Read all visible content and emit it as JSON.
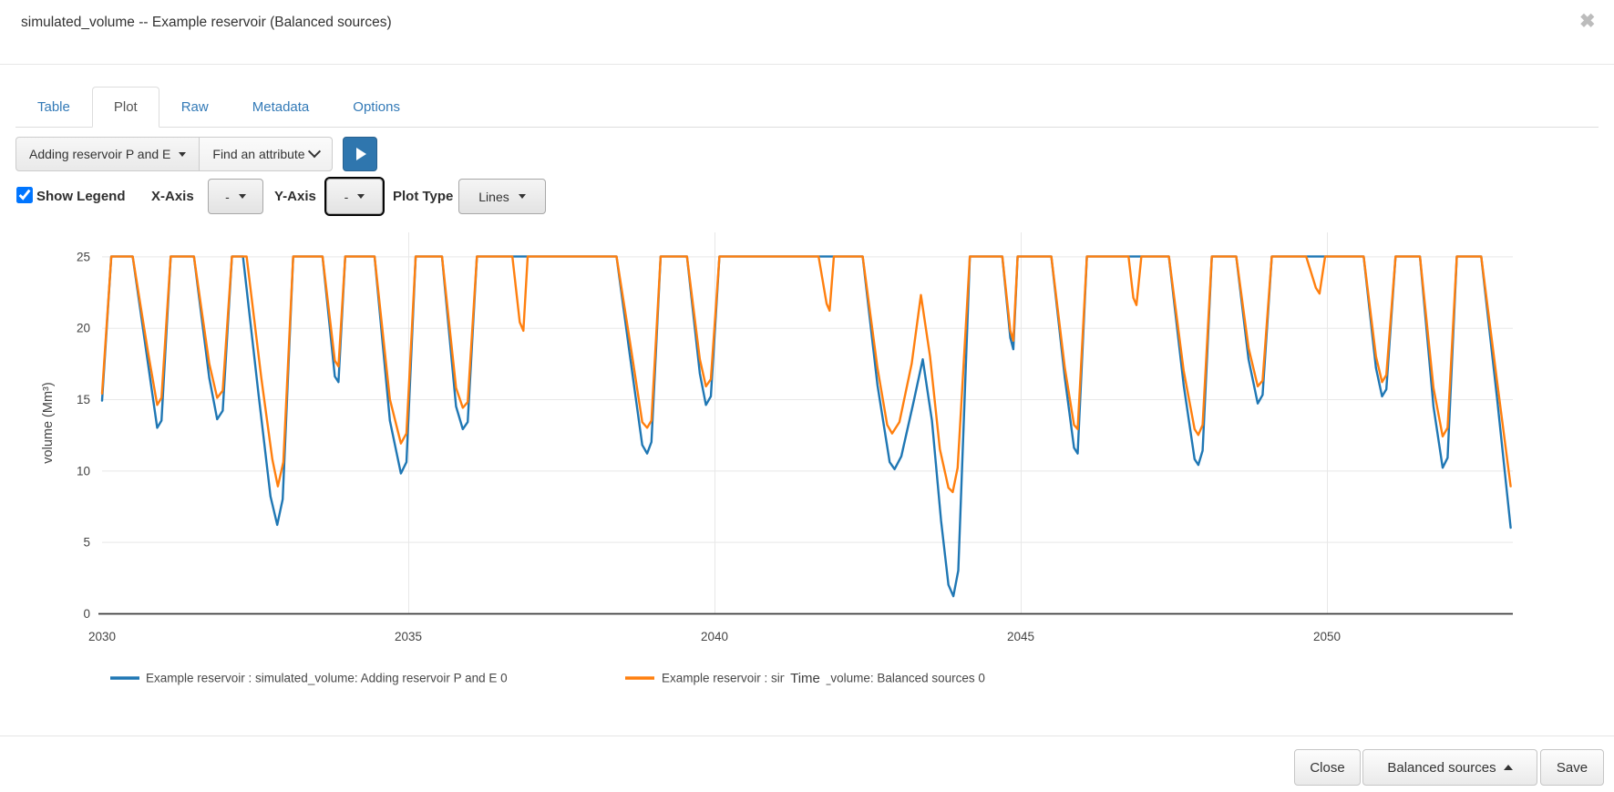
{
  "header": {
    "title": "simulated_volume -- Example reservoir (Balanced sources)",
    "close_glyph": "✖"
  },
  "tabs": [
    {
      "label": "Table",
      "active": false
    },
    {
      "label": "Plot",
      "active": true
    },
    {
      "label": "Raw",
      "active": false
    },
    {
      "label": "Metadata",
      "active": false
    },
    {
      "label": "Options",
      "active": false
    }
  ],
  "toolbar": {
    "scenario_dropdown_label": "Adding reservoir P and E",
    "attribute_dropdown_label": "Find an attribute",
    "play_button": "play"
  },
  "controls": {
    "show_legend_label": "Show Legend",
    "show_legend_checked": true,
    "x_axis_label": "X-Axis",
    "x_axis_value": "-",
    "y_axis_label": "Y-Axis",
    "y_axis_value": "-",
    "plot_type_label": "Plot Type",
    "plot_type_value": "Lines"
  },
  "chart_data": {
    "type": "line",
    "xlabel": "Time",
    "ylabel": "volume (Mm³)",
    "xlim": [
      2030,
      2053.2
    ],
    "ylim": [
      0,
      25
    ],
    "xticks": [
      2030,
      2035,
      2040,
      2045,
      2050
    ],
    "yticks": [
      0,
      5,
      10,
      15,
      20,
      25
    ],
    "grid": true,
    "legend_position": "below",
    "series": [
      {
        "name": "Example reservoir : simulated_volume: Adding reservoir P and E 0",
        "color": "#1f77b4",
        "points": [
          [
            2030.0,
            14.9
          ],
          [
            2030.15,
            25
          ],
          [
            2030.5,
            25
          ],
          [
            2030.75,
            17.5
          ],
          [
            2030.9,
            13.0
          ],
          [
            2030.97,
            13.5
          ],
          [
            2031.12,
            25
          ],
          [
            2031.5,
            25
          ],
          [
            2031.75,
            16.5
          ],
          [
            2031.88,
            13.6
          ],
          [
            2031.97,
            14.2
          ],
          [
            2032.12,
            25
          ],
          [
            2032.3,
            25
          ],
          [
            2032.55,
            15.5
          ],
          [
            2032.75,
            8.2
          ],
          [
            2032.86,
            6.2
          ],
          [
            2032.95,
            8.0
          ],
          [
            2033.12,
            25
          ],
          [
            2033.6,
            25
          ],
          [
            2033.8,
            16.6
          ],
          [
            2033.86,
            16.2
          ],
          [
            2033.97,
            25
          ],
          [
            2034.45,
            25
          ],
          [
            2034.7,
            13.5
          ],
          [
            2034.88,
            9.8
          ],
          [
            2034.97,
            10.6
          ],
          [
            2035.12,
            25
          ],
          [
            2035.55,
            25
          ],
          [
            2035.78,
            14.5
          ],
          [
            2035.89,
            12.9
          ],
          [
            2035.97,
            13.4
          ],
          [
            2036.12,
            25
          ],
          [
            2038.4,
            25
          ],
          [
            2038.62,
            18.0
          ],
          [
            2038.82,
            11.8
          ],
          [
            2038.9,
            11.2
          ],
          [
            2038.97,
            12.0
          ],
          [
            2039.12,
            25
          ],
          [
            2039.55,
            25
          ],
          [
            2039.76,
            16.8
          ],
          [
            2039.86,
            14.6
          ],
          [
            2039.94,
            15.2
          ],
          [
            2040.08,
            25
          ],
          [
            2042.42,
            25
          ],
          [
            2042.66,
            16.0
          ],
          [
            2042.86,
            10.6
          ],
          [
            2042.94,
            10.1
          ],
          [
            2043.05,
            11.0
          ],
          [
            2043.25,
            14.8
          ],
          [
            2043.4,
            17.8
          ],
          [
            2043.55,
            13.5
          ],
          [
            2043.7,
            6.5
          ],
          [
            2043.82,
            2.0
          ],
          [
            2043.9,
            1.2
          ],
          [
            2043.98,
            3.0
          ],
          [
            2044.17,
            25
          ],
          [
            2044.7,
            25
          ],
          [
            2044.83,
            19.3
          ],
          [
            2044.88,
            18.5
          ],
          [
            2044.95,
            25
          ],
          [
            2045.5,
            25
          ],
          [
            2045.72,
            16.5
          ],
          [
            2045.87,
            11.6
          ],
          [
            2045.93,
            11.2
          ],
          [
            2046.08,
            25
          ],
          [
            2047.42,
            25
          ],
          [
            2047.66,
            16.0
          ],
          [
            2047.84,
            10.8
          ],
          [
            2047.9,
            10.4
          ],
          [
            2047.97,
            11.4
          ],
          [
            2048.12,
            25
          ],
          [
            2048.52,
            25
          ],
          [
            2048.72,
            17.8
          ],
          [
            2048.87,
            14.7
          ],
          [
            2048.95,
            15.3
          ],
          [
            2049.1,
            25
          ],
          [
            2050.6,
            25
          ],
          [
            2050.8,
            17.2
          ],
          [
            2050.9,
            15.2
          ],
          [
            2050.97,
            15.7
          ],
          [
            2051.12,
            25
          ],
          [
            2051.52,
            25
          ],
          [
            2051.74,
            14.5
          ],
          [
            2051.89,
            10.2
          ],
          [
            2051.97,
            10.9
          ],
          [
            2052.12,
            25
          ],
          [
            2052.52,
            25
          ],
          [
            2052.78,
            15.0
          ],
          [
            2053.0,
            6.0
          ]
        ]
      },
      {
        "name": "Example reservoir : simulated_volume: Balanced sources 0",
        "color": "#ff7f0e",
        "points": [
          [
            2030.0,
            15.4
          ],
          [
            2030.15,
            25
          ],
          [
            2030.5,
            25
          ],
          [
            2030.75,
            18.3
          ],
          [
            2030.9,
            14.6
          ],
          [
            2030.97,
            15.1
          ],
          [
            2031.12,
            25
          ],
          [
            2031.5,
            25
          ],
          [
            2031.75,
            17.5
          ],
          [
            2031.88,
            15.1
          ],
          [
            2031.97,
            15.6
          ],
          [
            2032.12,
            25
          ],
          [
            2032.36,
            25
          ],
          [
            2032.6,
            16.5
          ],
          [
            2032.78,
            10.8
          ],
          [
            2032.87,
            8.9
          ],
          [
            2032.96,
            10.6
          ],
          [
            2033.12,
            25
          ],
          [
            2033.6,
            25
          ],
          [
            2033.8,
            17.7
          ],
          [
            2033.86,
            17.3
          ],
          [
            2033.97,
            25
          ],
          [
            2034.45,
            25
          ],
          [
            2034.7,
            15.0
          ],
          [
            2034.88,
            11.9
          ],
          [
            2034.97,
            12.6
          ],
          [
            2035.12,
            25
          ],
          [
            2035.55,
            25
          ],
          [
            2035.78,
            15.8
          ],
          [
            2035.89,
            14.4
          ],
          [
            2035.97,
            14.8
          ],
          [
            2036.12,
            25
          ],
          [
            2036.7,
            25
          ],
          [
            2036.82,
            20.4
          ],
          [
            2036.88,
            19.8
          ],
          [
            2036.95,
            25
          ],
          [
            2038.4,
            25
          ],
          [
            2038.62,
            19.0
          ],
          [
            2038.82,
            13.4
          ],
          [
            2038.9,
            13.0
          ],
          [
            2038.97,
            13.5
          ],
          [
            2039.12,
            25
          ],
          [
            2039.55,
            25
          ],
          [
            2039.76,
            17.8
          ],
          [
            2039.86,
            15.9
          ],
          [
            2039.94,
            16.4
          ],
          [
            2040.08,
            25
          ],
          [
            2041.7,
            25
          ],
          [
            2041.83,
            21.7
          ],
          [
            2041.88,
            21.2
          ],
          [
            2041.95,
            25
          ],
          [
            2042.42,
            25
          ],
          [
            2042.66,
            17.2
          ],
          [
            2042.82,
            13.2
          ],
          [
            2042.9,
            12.6
          ],
          [
            2043.02,
            13.4
          ],
          [
            2043.22,
            17.5
          ],
          [
            2043.37,
            22.3
          ],
          [
            2043.52,
            18.0
          ],
          [
            2043.68,
            11.5
          ],
          [
            2043.82,
            8.8
          ],
          [
            2043.89,
            8.5
          ],
          [
            2043.97,
            10.2
          ],
          [
            2044.17,
            25
          ],
          [
            2044.7,
            25
          ],
          [
            2044.83,
            19.8
          ],
          [
            2044.88,
            19.1
          ],
          [
            2044.95,
            25
          ],
          [
            2045.5,
            25
          ],
          [
            2045.72,
            17.2
          ],
          [
            2045.87,
            13.2
          ],
          [
            2045.93,
            12.9
          ],
          [
            2046.08,
            25
          ],
          [
            2046.76,
            25
          ],
          [
            2046.84,
            22.1
          ],
          [
            2046.89,
            21.6
          ],
          [
            2046.97,
            25
          ],
          [
            2047.42,
            25
          ],
          [
            2047.66,
            17.0
          ],
          [
            2047.84,
            12.9
          ],
          [
            2047.9,
            12.5
          ],
          [
            2047.97,
            13.2
          ],
          [
            2048.12,
            25
          ],
          [
            2048.52,
            25
          ],
          [
            2048.72,
            18.6
          ],
          [
            2048.87,
            15.9
          ],
          [
            2048.95,
            16.3
          ],
          [
            2049.1,
            25
          ],
          [
            2049.66,
            25
          ],
          [
            2049.82,
            22.8
          ],
          [
            2049.88,
            22.4
          ],
          [
            2049.97,
            25
          ],
          [
            2050.6,
            25
          ],
          [
            2050.8,
            18.0
          ],
          [
            2050.9,
            16.2
          ],
          [
            2050.97,
            16.7
          ],
          [
            2051.12,
            25
          ],
          [
            2051.52,
            25
          ],
          [
            2051.74,
            15.8
          ],
          [
            2051.89,
            12.4
          ],
          [
            2051.97,
            13.0
          ],
          [
            2052.12,
            25
          ],
          [
            2052.52,
            25
          ],
          [
            2052.78,
            16.2
          ],
          [
            2053.0,
            8.9
          ]
        ]
      }
    ],
    "colors": {
      "series_blue": "#1f77b4",
      "series_orange": "#ff7f0e",
      "grid": "#e8e8e8",
      "axis_line": "#3c3c3c",
      "tick_text": "#444444"
    }
  },
  "footer": {
    "close_label": "Close",
    "scenario_label": "Balanced sources",
    "save_label": "Save"
  }
}
